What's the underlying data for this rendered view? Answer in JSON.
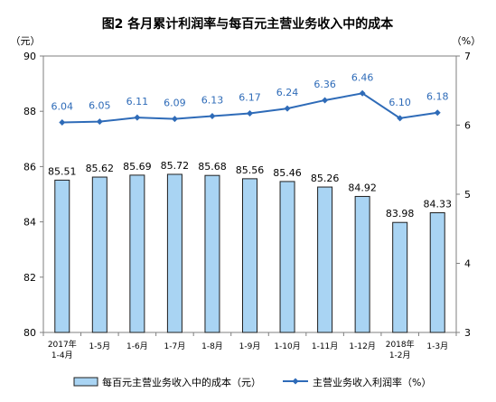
{
  "chart_data": {
    "type": "bar+line",
    "title": "图2  各月累计利润率与每百元主营业务收入中的成本",
    "categories": [
      [
        "2017年",
        "1-4月"
      ],
      [
        "1-5月"
      ],
      [
        "1-6月"
      ],
      [
        "1-7月"
      ],
      [
        "1-8月"
      ],
      [
        "1-9月"
      ],
      [
        "1-10月"
      ],
      [
        "1-11月"
      ],
      [
        "1-12月"
      ],
      [
        "2018年",
        "1-2月"
      ],
      [
        "1-3月"
      ]
    ],
    "y_left": {
      "unit": "（元）",
      "range": [
        80,
        90
      ],
      "ticks": [
        "80",
        "82",
        "84",
        "86",
        "88",
        "90"
      ]
    },
    "y_right": {
      "unit": "（%）",
      "range": [
        3,
        7
      ],
      "ticks": [
        "3",
        "4",
        "5",
        "6",
        "7"
      ]
    },
    "series": [
      {
        "name": "每百元主营业务收入中的成本（元）",
        "type": "bar",
        "axis": "left",
        "color": "#a9d4f3",
        "values": [
          85.51,
          85.62,
          85.69,
          85.72,
          85.68,
          85.56,
          85.46,
          85.26,
          84.92,
          83.98,
          84.33
        ],
        "labels": [
          "85.51",
          "85.62",
          "85.69",
          "85.72",
          "85.68",
          "85.56",
          "85.46",
          "85.26",
          "84.92",
          "83.98",
          "84.33"
        ]
      },
      {
        "name": "主营业务收入利润率（%）",
        "type": "line",
        "axis": "right",
        "color": "#2e6bb8",
        "values": [
          6.04,
          6.05,
          6.11,
          6.09,
          6.13,
          6.17,
          6.24,
          6.36,
          6.46,
          6.1,
          6.18
        ],
        "labels": [
          "6.04",
          "6.05",
          "6.11",
          "6.09",
          "6.13",
          "6.17",
          "6.24",
          "6.36",
          "6.46",
          "6.10",
          "6.18"
        ]
      }
    ],
    "legend": {
      "position": "bottom"
    },
    "grid": false
  }
}
